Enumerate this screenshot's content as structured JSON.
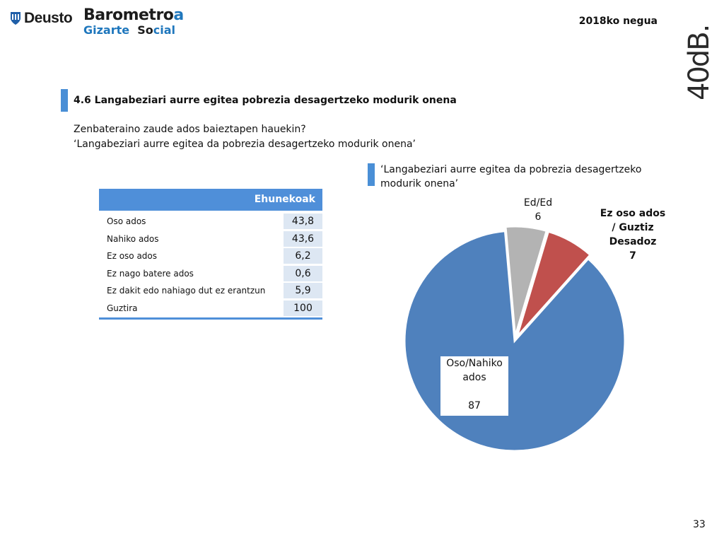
{
  "header": {
    "deusto": "Deusto",
    "barometro_main": "Barometro",
    "barometro_accent": "a",
    "gizarte": "Gizarte",
    "social_dark": "So",
    "social_accent": "cial",
    "date": "2018ko negua",
    "brand_40db": "40dB."
  },
  "section": {
    "title": "4.6 Langabeziari aurre egitea pobrezia desagertzeko modurik onena",
    "question_line1": "Zenbateraino zaude ados baieztapen hauekin?",
    "question_line2": "‘Langabeziari aurre egitea da pobrezia desagertzeko modurik onena’"
  },
  "table": {
    "header": "Ehunekoak",
    "rows": [
      {
        "label": "Oso ados",
        "value": "43,8"
      },
      {
        "label": "Nahiko ados",
        "value": "43,6"
      },
      {
        "label": "Ez oso ados",
        "value": "6,2"
      },
      {
        "label": "Ez nago batere ados",
        "value": "0,6"
      },
      {
        "label": "Ez dakit edo nahiago dut ez erantzun",
        "value": "5,9"
      },
      {
        "label": "Guztira",
        "value": "100"
      }
    ]
  },
  "chart_data": {
    "type": "pie",
    "title": "‘Langabeziari aurre egitea da pobrezia desagertzeko modurik onena’",
    "slices": [
      {
        "label_line1": "Oso/Nahiko",
        "label_line2": "ados",
        "value": 87,
        "color": "#4f81bd"
      },
      {
        "label_line1": "Ed/Ed",
        "label_line2": "",
        "value": 6,
        "color": "#b3b3b3"
      },
      {
        "label_line1": "Ez oso ados",
        "label_line2": "/ Guztiz",
        "label_line3": "Desadoz",
        "value": 7,
        "color": "#c0504d"
      }
    ]
  },
  "colors": {
    "accent": "#4a8fd6",
    "table_header": "#4f8fd9",
    "table_cell": "#dde7f3"
  },
  "footer": {
    "page_number": "33"
  }
}
